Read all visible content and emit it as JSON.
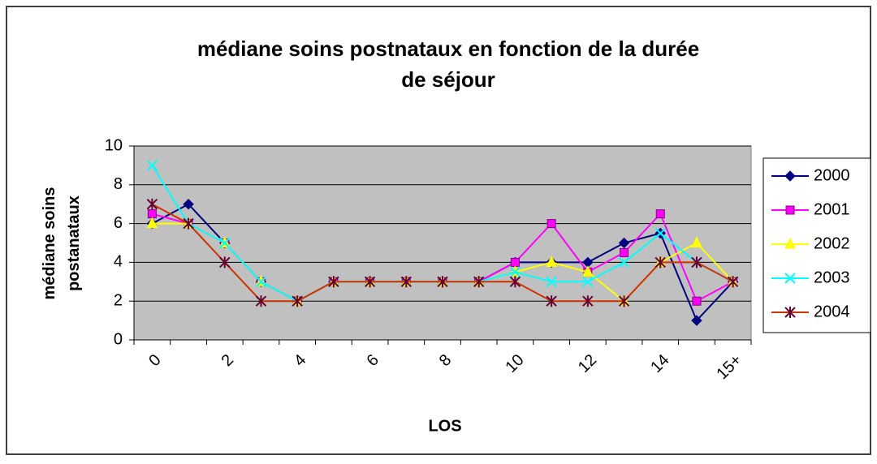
{
  "chart_data": {
    "type": "line",
    "title": "médiane soins postnataux en fonction de la durée de séjour",
    "xlabel": "LOS",
    "ylabel": "médiane soins postanataux",
    "categories": [
      "0",
      null,
      "2",
      null,
      "4",
      null,
      "6",
      null,
      "8",
      null,
      "10",
      null,
      "12",
      null,
      "14",
      null,
      "15+"
    ],
    "series": [
      {
        "name": "2000",
        "color": "#000080",
        "marker": "diamond",
        "values": [
          6,
          7,
          5,
          3,
          2,
          3,
          3,
          3,
          3,
          3,
          4,
          4,
          4,
          5,
          5.5,
          1,
          3
        ]
      },
      {
        "name": "2001",
        "color": "#ff00ff",
        "marker": "square",
        "values": [
          6.5,
          6,
          5,
          3,
          2,
          3,
          3,
          3,
          3,
          3,
          4,
          6,
          3.5,
          4.5,
          6.5,
          2,
          3
        ]
      },
      {
        "name": "2002",
        "color": "#ffff00",
        "marker": "triangle",
        "values": [
          6,
          6,
          5,
          3,
          2,
          3,
          3,
          3,
          3,
          3,
          3.5,
          4,
          3.5,
          2,
          4,
          5,
          3
        ]
      },
      {
        "name": "2003",
        "color": "#00ffff",
        "marker": "x",
        "values": [
          9,
          6,
          5,
          3,
          2,
          3,
          3,
          3,
          3,
          3,
          3.5,
          3,
          3,
          4,
          5.5,
          4,
          3
        ]
      },
      {
        "name": "2004",
        "color": "#cc3300",
        "marker": "asterisk",
        "values": [
          7,
          6,
          4,
          2,
          2,
          3,
          3,
          3,
          3,
          3,
          3,
          2,
          2,
          2,
          4,
          4,
          3
        ]
      }
    ],
    "ylim": [
      0,
      10
    ],
    "yticks": [
      0,
      2,
      4,
      6,
      8,
      10
    ],
    "grid": true,
    "legend": "right"
  }
}
